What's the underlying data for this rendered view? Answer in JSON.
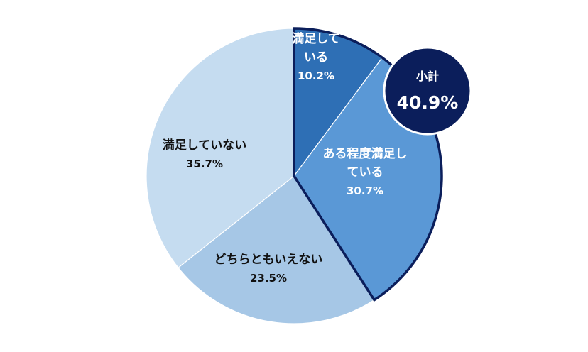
{
  "chart_data": {
    "type": "pie",
    "start": "12 o'clock",
    "direction": "clockwise",
    "slices": [
      {
        "name": "満足している",
        "label_lines": [
          "満足して",
          "いる"
        ],
        "value": 10.2,
        "value_label": "10.2%",
        "color": "#2e6fb5",
        "text_color": "#ffffff",
        "highlight": true
      },
      {
        "name": "ある程度満足している",
        "label_lines": [
          "ある程度満足し",
          "ている"
        ],
        "value": 30.7,
        "value_label": "30.7%",
        "color": "#5a98d6",
        "text_color": "#ffffff",
        "highlight": true
      },
      {
        "name": "どちらともいえない",
        "label_lines": [
          "どちらともいえない"
        ],
        "value": 23.5,
        "value_label": "23.5%",
        "color": "#a6c7e6",
        "text_color": "#111111",
        "highlight": false
      },
      {
        "name": "満足していない",
        "label_lines": [
          "満足していない"
        ],
        "value": 35.7,
        "value_label": "35.7%",
        "color": "#c5dcf0",
        "text_color": "#111111",
        "highlight": false
      }
    ],
    "subtotal": {
      "label": "小計",
      "value": 40.9,
      "value_label": "40.9%",
      "color": "#0b1e5b",
      "text_color": "#ffffff"
    },
    "highlight_outline_color": "#0b1e5b"
  }
}
